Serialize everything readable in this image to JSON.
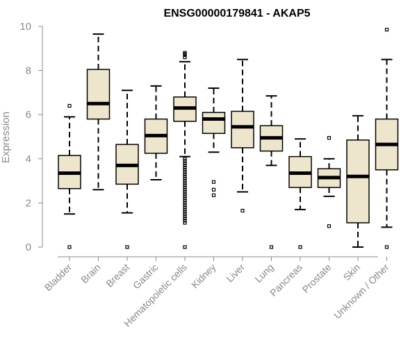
{
  "chart_data": {
    "type": "box",
    "title": "ENSG00000179841 - AKAP5",
    "xlabel": "",
    "ylabel": "Expression",
    "ylim": [
      0,
      10
    ],
    "yticks": [
      0,
      2,
      4,
      6,
      8,
      10
    ],
    "grid": false,
    "legend": "none",
    "colors": {
      "box_fill": "#ede6cc",
      "stroke": "#000000",
      "axis": "#888888"
    },
    "categories": [
      "Bladder",
      "Brain",
      "Breast",
      "Gastric",
      "Hematopoietic cells",
      "Kidney",
      "Liver",
      "Lung",
      "Pancreas",
      "Prostate",
      "Skin",
      "Unknown / Other"
    ],
    "boxes": [
      {
        "category": "Bladder",
        "q1": 2.65,
        "median": 3.35,
        "q3": 4.15,
        "whisker_low": 1.5,
        "whisker_high": 5.9,
        "outliers": [
          6.4,
          0.0
        ]
      },
      {
        "category": "Brain",
        "q1": 5.8,
        "median": 6.5,
        "q3": 8.05,
        "whisker_low": 2.6,
        "whisker_high": 9.65,
        "outliers": []
      },
      {
        "category": "Breast",
        "q1": 2.85,
        "median": 3.7,
        "q3": 4.65,
        "whisker_low": 1.55,
        "whisker_high": 7.1,
        "outliers": [
          0.0
        ]
      },
      {
        "category": "Gastric",
        "q1": 4.25,
        "median": 5.05,
        "q3": 5.8,
        "whisker_low": 3.05,
        "whisker_high": 7.3,
        "outliers": []
      },
      {
        "category": "Hematopoietic cells",
        "q1": 5.7,
        "median": 6.3,
        "q3": 6.8,
        "whisker_low": 4.1,
        "whisker_high": 8.4,
        "outliers": [
          8.8,
          8.75,
          8.7,
          8.6,
          4.0,
          3.9,
          3.8,
          3.7,
          3.6,
          3.5,
          3.4,
          3.3,
          3.2,
          3.1,
          3.0,
          2.9,
          2.8,
          2.7,
          2.6,
          2.5,
          2.4,
          2.3,
          2.2,
          2.1,
          2.0,
          1.9,
          1.8,
          1.7,
          1.6,
          1.5,
          1.4,
          1.3,
          1.2,
          1.1,
          0.0
        ]
      },
      {
        "category": "Kidney",
        "q1": 5.15,
        "median": 5.8,
        "q3": 6.1,
        "whisker_low": 4.3,
        "whisker_high": 7.2,
        "outliers": [
          2.95,
          2.6,
          2.35
        ]
      },
      {
        "category": "Liver",
        "q1": 4.5,
        "median": 5.45,
        "q3": 6.15,
        "whisker_low": 2.5,
        "whisker_high": 8.5,
        "outliers": [
          1.65
        ]
      },
      {
        "category": "Lung",
        "q1": 4.35,
        "median": 4.95,
        "q3": 5.5,
        "whisker_low": 3.7,
        "whisker_high": 6.85,
        "outliers": [
          0.0
        ]
      },
      {
        "category": "Pancreas",
        "q1": 2.7,
        "median": 3.35,
        "q3": 4.1,
        "whisker_low": 1.7,
        "whisker_high": 4.9,
        "outliers": [
          0.0
        ]
      },
      {
        "category": "Prostate",
        "q1": 2.7,
        "median": 3.15,
        "q3": 3.55,
        "whisker_low": 2.3,
        "whisker_high": 4.0,
        "outliers": [
          4.95,
          0.95
        ]
      },
      {
        "category": "Skin",
        "q1": 1.1,
        "median": 3.2,
        "q3": 4.85,
        "whisker_low": 0.0,
        "whisker_high": 5.95,
        "outliers": []
      },
      {
        "category": "Unknown / Other",
        "q1": 3.5,
        "median": 4.65,
        "q3": 5.8,
        "whisker_low": 0.9,
        "whisker_high": 8.5,
        "outliers": [
          9.85,
          0.0
        ]
      }
    ]
  }
}
